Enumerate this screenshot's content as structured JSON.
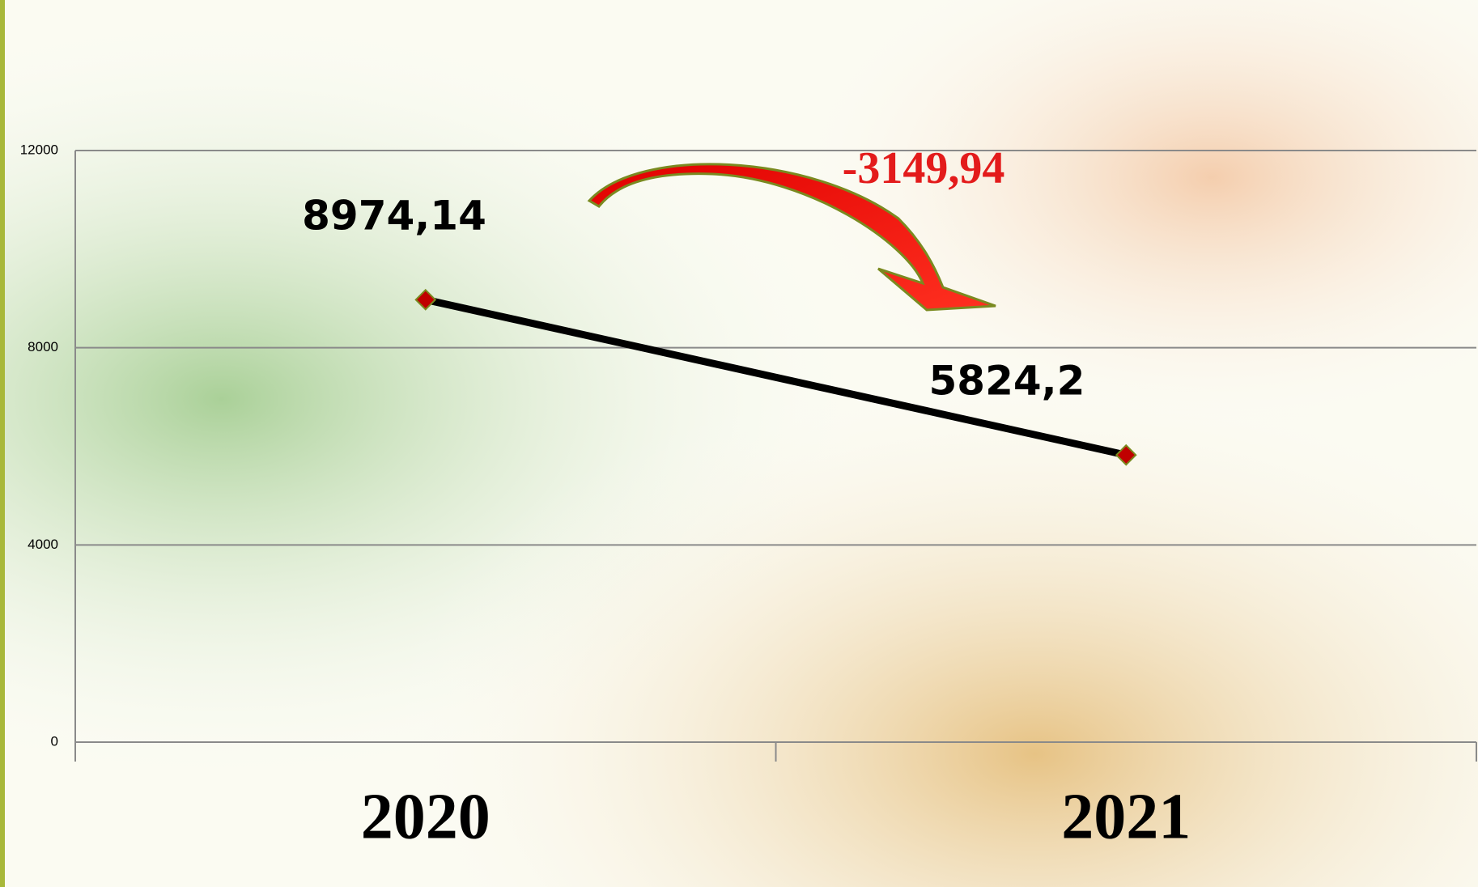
{
  "chart_data": {
    "type": "line",
    "categories": [
      "2020",
      "2021"
    ],
    "values": [
      8974.14,
      5824.2
    ],
    "value_labels": [
      "8974,14",
      "5824,2"
    ],
    "color": "#000000",
    "marker_color": "#c00000",
    "ylim": [
      0,
      12000
    ],
    "yticks": [
      0,
      4000,
      8000,
      12000
    ],
    "grid": true,
    "annotation": "-3149,94"
  }
}
